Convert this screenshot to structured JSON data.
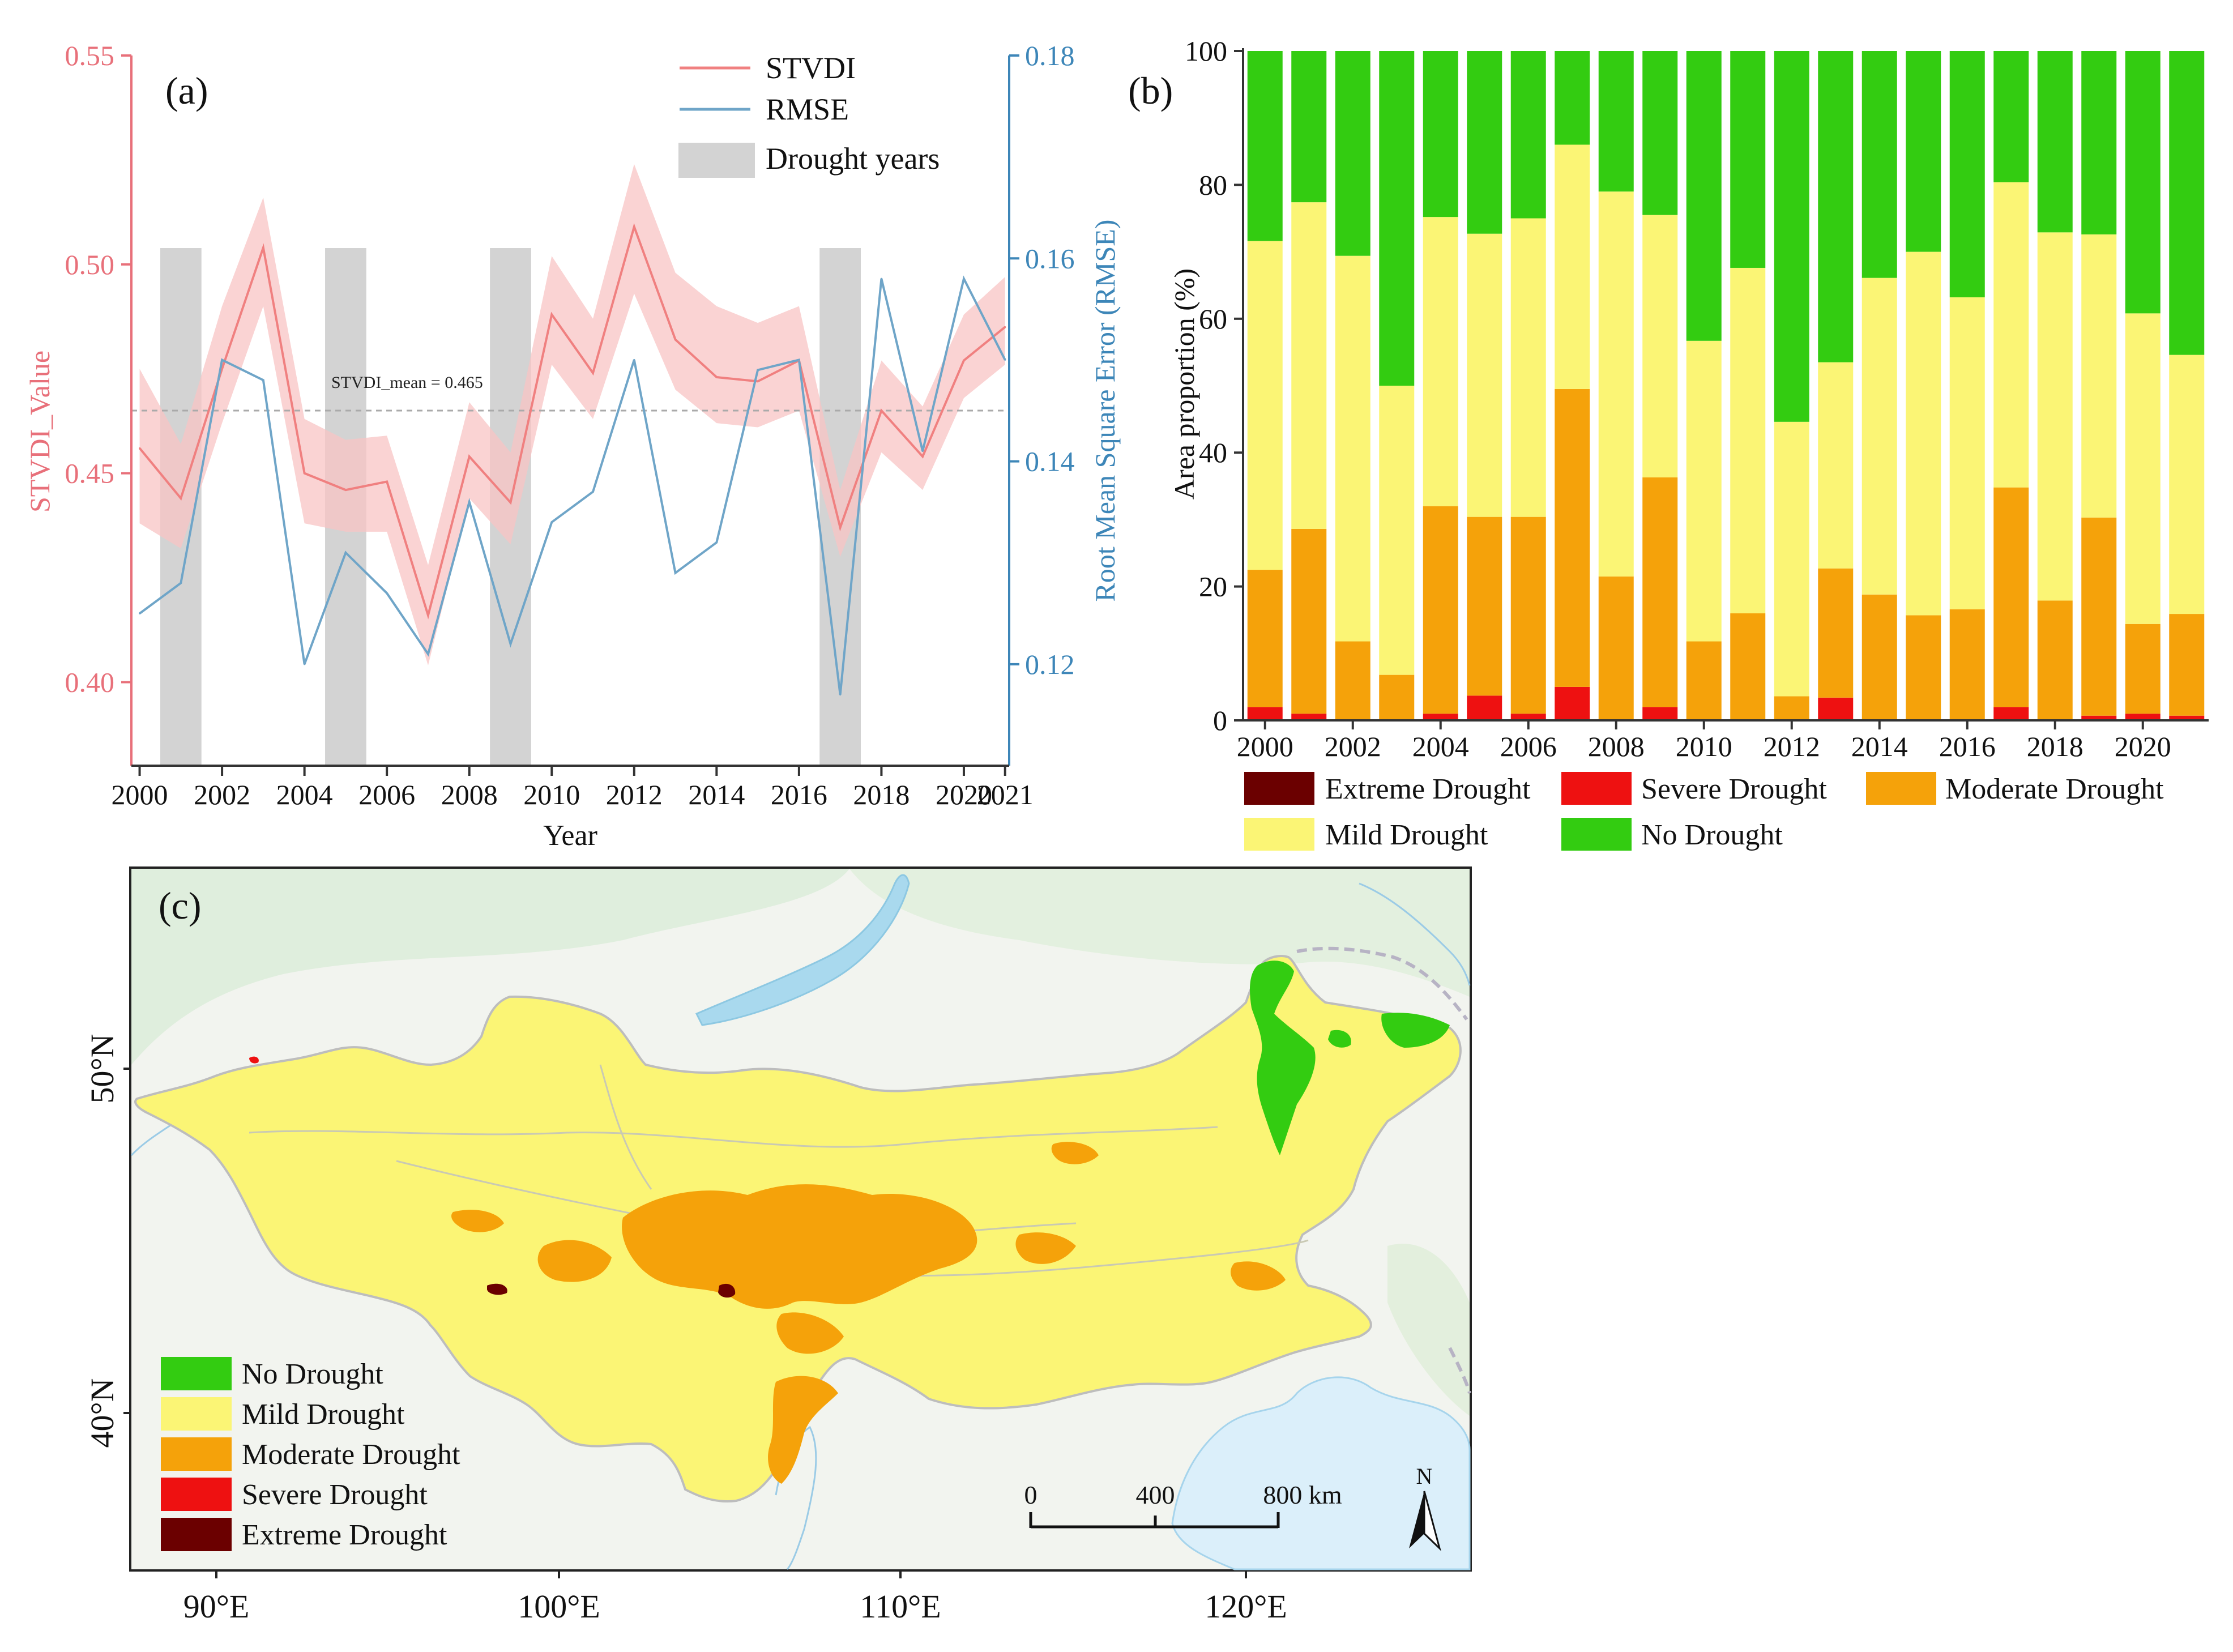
{
  "chart_data": [
    {
      "panel": "(a)",
      "type": "line",
      "x": [
        2000,
        2001,
        2002,
        2003,
        2004,
        2005,
        2006,
        2007,
        2008,
        2009,
        2010,
        2011,
        2012,
        2013,
        2014,
        2015,
        2016,
        2017,
        2018,
        2019,
        2020,
        2021
      ],
      "series": [
        {
          "name": "STVDI",
          "axis": "left",
          "color": "#f08080",
          "values": [
            0.456,
            0.444,
            0.475,
            0.504,
            0.45,
            0.446,
            0.448,
            0.416,
            0.454,
            0.443,
            0.488,
            0.474,
            0.509,
            0.482,
            0.473,
            0.472,
            0.477,
            0.437,
            0.465,
            0.454,
            0.477,
            0.485
          ],
          "band_lower": [
            0.438,
            0.432,
            0.462,
            0.49,
            0.438,
            0.436,
            0.436,
            0.404,
            0.444,
            0.433,
            0.476,
            0.463,
            0.493,
            0.47,
            0.462,
            0.461,
            0.465,
            0.43,
            0.455,
            0.446,
            0.468,
            0.476
          ],
          "band_upper": [
            0.475,
            0.457,
            0.49,
            0.516,
            0.463,
            0.458,
            0.459,
            0.428,
            0.467,
            0.455,
            0.502,
            0.487,
            0.524,
            0.498,
            0.49,
            0.486,
            0.49,
            0.446,
            0.477,
            0.466,
            0.488,
            0.497
          ]
        },
        {
          "name": "RMSE",
          "axis": "right",
          "color": "#6fa5c8",
          "values": [
            0.125,
            0.128,
            0.15,
            0.148,
            0.12,
            0.131,
            0.127,
            0.121,
            0.136,
            0.122,
            0.134,
            0.137,
            0.15,
            0.129,
            0.132,
            0.149,
            0.15,
            0.117,
            0.158,
            0.141,
            0.158,
            0.15
          ]
        }
      ],
      "drought_years": [
        2001,
        2005,
        2009,
        2017
      ],
      "mean_line": {
        "value": 0.465,
        "label": "STVDI_mean = 0.465"
      },
      "legend": [
        "STVDI",
        "RMSE",
        "Drought years"
      ],
      "xlabel": "Year",
      "ylabel_left": "STVDI_Value",
      "ylabel_right": "Root Mean Square Error (RMSE)",
      "ylim_left": [
        0.38,
        0.55
      ],
      "ylim_right": [
        0.11,
        0.18
      ],
      "xlim": [
        1999.8,
        2021.1
      ],
      "xticks": [
        2000,
        2002,
        2004,
        2006,
        2008,
        2010,
        2012,
        2014,
        2016,
        2018,
        2020,
        2021
      ],
      "yticks_left": [
        "0.40",
        "0.45",
        "0.50",
        "0.55"
      ],
      "yticks_right": [
        "0.12",
        "0.14",
        "0.16",
        "0.18"
      ],
      "left_axis_color": "#e8707a",
      "right_axis_color": "#3d86b8"
    },
    {
      "panel": "(b)",
      "type": "bar",
      "stacked": true,
      "categories": [
        2000,
        2001,
        2002,
        2003,
        2004,
        2005,
        2006,
        2007,
        2008,
        2009,
        2010,
        2011,
        2012,
        2013,
        2014,
        2015,
        2016,
        2017,
        2018,
        2019,
        2020,
        2021
      ],
      "xtick_labels": [
        "2000",
        "2002",
        "2004",
        "2006",
        "2008",
        "2010",
        "2012",
        "2014",
        "2016",
        "2018",
        "2020"
      ],
      "series": [
        {
          "name": "Extreme Drought",
          "color": "#6b0000",
          "values": [
            0,
            0,
            0,
            0,
            0,
            0,
            0,
            0,
            0,
            0,
            0,
            0,
            0,
            0,
            0,
            0,
            0,
            0,
            0,
            0,
            0,
            0
          ]
        },
        {
          "name": "Severe Drought",
          "color": "#ee1111",
          "values": [
            2,
            1,
            0,
            0,
            1,
            3.7,
            1,
            5,
            0,
            2,
            0,
            0,
            0,
            3.4,
            0,
            0,
            0,
            2,
            0,
            0.7,
            1,
            0.7
          ]
        },
        {
          "name": "Moderate Drought",
          "color": "#f5a20a",
          "values": [
            20.5,
            27.6,
            11.8,
            6.8,
            31,
            26.7,
            29.4,
            44.5,
            21.5,
            34.3,
            11.8,
            16,
            3.6,
            19.3,
            18.8,
            15.7,
            16.6,
            32.8,
            17.9,
            29.6,
            13.4,
            15.2
          ]
        },
        {
          "name": "Mild Drought",
          "color": "#fbf575",
          "values": [
            49.1,
            48.8,
            57.6,
            43.2,
            43.2,
            42.3,
            44.6,
            36.5,
            57.5,
            39.2,
            44.9,
            51.6,
            41,
            30.8,
            47.3,
            54.3,
            46.6,
            45.6,
            55,
            42.3,
            46.4,
            38.7
          ]
        },
        {
          "name": "No Drought",
          "color": "#33cc11",
          "values": [
            28.4,
            22.6,
            30.6,
            50,
            24.8,
            27.3,
            25,
            14,
            21,
            24.5,
            43.3,
            32.4,
            55.4,
            46.5,
            33.9,
            30,
            36.8,
            19.6,
            27.1,
            27.4,
            39.2,
            45.4
          ]
        }
      ],
      "ylabel": "Area proportion (%)",
      "ylim": [
        0,
        100
      ],
      "yticks": [
        "0",
        "20",
        "40",
        "60",
        "80",
        "100"
      ]
    }
  ],
  "map": {
    "panel": "(c)",
    "type": "map",
    "lat_labels": [
      "50°N",
      "40°N"
    ],
    "lon_labels": [
      "90°E",
      "100°E",
      "110°E",
      "120°E"
    ],
    "legend": [
      {
        "label": "No Drought",
        "color": "#33cc11"
      },
      {
        "label": "Mild Drought",
        "color": "#fbf575"
      },
      {
        "label": "Moderate Drought",
        "color": "#f5a20a"
      },
      {
        "label": "Severe Drought",
        "color": "#ee1111"
      },
      {
        "label": "Extreme Drought",
        "color": "#6b0000"
      }
    ],
    "scale_labels": [
      "0",
      "400",
      "800 km"
    ],
    "north_label": "N"
  }
}
